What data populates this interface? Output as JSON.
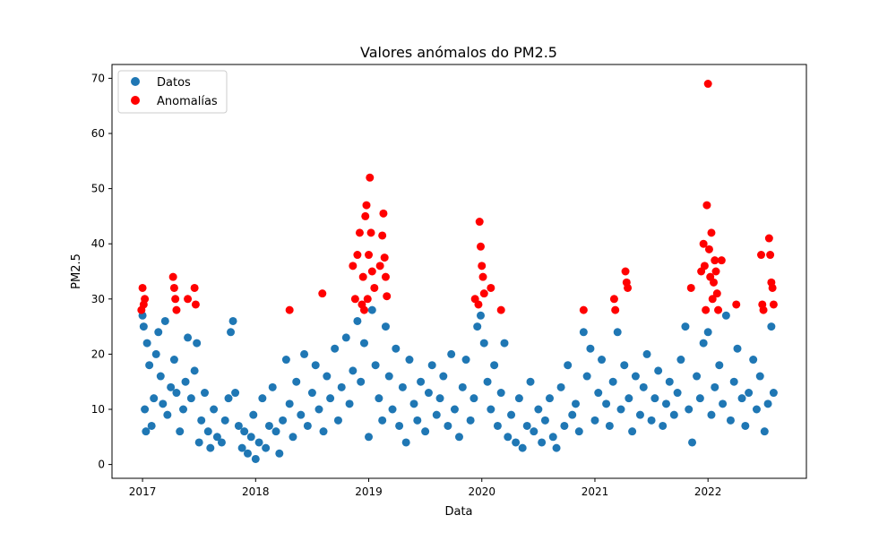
{
  "chart_data": {
    "type": "scatter",
    "title": "Valores anómalos do PM2.5",
    "xlabel": "Data",
    "ylabel": "PM2.5",
    "xlim": [
      2016.73,
      2022.87
    ],
    "ylim": [
      -2.5,
      72.5
    ],
    "x_ticks": [
      2017,
      2018,
      2019,
      2020,
      2021,
      2022
    ],
    "x_tick_labels": [
      "2017",
      "2018",
      "2019",
      "2020",
      "2021",
      "2022"
    ],
    "y_ticks": [
      0,
      10,
      20,
      30,
      40,
      50,
      60,
      70
    ],
    "y_tick_labels": [
      "0",
      "10",
      "20",
      "30",
      "40",
      "50",
      "60",
      "70"
    ],
    "grid": false,
    "legend": {
      "position": "top-left"
    },
    "series": [
      {
        "name": "Datos",
        "color": "#1f77b4",
        "points": [
          [
            2017.0,
            27
          ],
          [
            2017.01,
            25
          ],
          [
            2017.02,
            10
          ],
          [
            2017.03,
            6
          ],
          [
            2017.04,
            22
          ],
          [
            2017.06,
            18
          ],
          [
            2017.08,
            7
          ],
          [
            2017.1,
            12
          ],
          [
            2017.12,
            20
          ],
          [
            2017.14,
            24
          ],
          [
            2017.16,
            16
          ],
          [
            2017.18,
            11
          ],
          [
            2017.2,
            26
          ],
          [
            2017.22,
            9
          ],
          [
            2017.25,
            14
          ],
          [
            2017.28,
            19
          ],
          [
            2017.3,
            13
          ],
          [
            2017.33,
            6
          ],
          [
            2017.36,
            10
          ],
          [
            2017.38,
            15
          ],
          [
            2017.4,
            23
          ],
          [
            2017.43,
            12
          ],
          [
            2017.46,
            17
          ],
          [
            2017.48,
            22
          ],
          [
            2017.5,
            4
          ],
          [
            2017.52,
            8
          ],
          [
            2017.55,
            13
          ],
          [
            2017.58,
            6
          ],
          [
            2017.6,
            3
          ],
          [
            2017.63,
            10
          ],
          [
            2017.66,
            5
          ],
          [
            2017.7,
            4
          ],
          [
            2017.73,
            8
          ],
          [
            2017.76,
            12
          ],
          [
            2017.78,
            24
          ],
          [
            2017.8,
            26
          ],
          [
            2017.82,
            13
          ],
          [
            2017.85,
            7
          ],
          [
            2017.88,
            3
          ],
          [
            2017.9,
            6
          ],
          [
            2017.93,
            2
          ],
          [
            2017.96,
            5
          ],
          [
            2017.98,
            9
          ],
          [
            2018.0,
            1
          ],
          [
            2018.03,
            4
          ],
          [
            2018.06,
            12
          ],
          [
            2018.09,
            3
          ],
          [
            2018.12,
            7
          ],
          [
            2018.15,
            14
          ],
          [
            2018.18,
            6
          ],
          [
            2018.21,
            2
          ],
          [
            2018.24,
            8
          ],
          [
            2018.27,
            19
          ],
          [
            2018.3,
            11
          ],
          [
            2018.33,
            5
          ],
          [
            2018.36,
            15
          ],
          [
            2018.4,
            9
          ],
          [
            2018.43,
            20
          ],
          [
            2018.46,
            7
          ],
          [
            2018.5,
            13
          ],
          [
            2018.53,
            18
          ],
          [
            2018.56,
            10
          ],
          [
            2018.6,
            6
          ],
          [
            2018.63,
            16
          ],
          [
            2018.66,
            12
          ],
          [
            2018.7,
            21
          ],
          [
            2018.73,
            8
          ],
          [
            2018.76,
            14
          ],
          [
            2018.8,
            23
          ],
          [
            2018.83,
            11
          ],
          [
            2018.86,
            17
          ],
          [
            2018.9,
            26
          ],
          [
            2018.93,
            15
          ],
          [
            2018.96,
            22
          ],
          [
            2019.0,
            5
          ],
          [
            2019.03,
            28
          ],
          [
            2019.06,
            18
          ],
          [
            2019.09,
            12
          ],
          [
            2019.12,
            8
          ],
          [
            2019.15,
            25
          ],
          [
            2019.18,
            16
          ],
          [
            2019.21,
            10
          ],
          [
            2019.24,
            21
          ],
          [
            2019.27,
            7
          ],
          [
            2019.3,
            14
          ],
          [
            2019.33,
            4
          ],
          [
            2019.36,
            19
          ],
          [
            2019.4,
            11
          ],
          [
            2019.43,
            8
          ],
          [
            2019.46,
            15
          ],
          [
            2019.5,
            6
          ],
          [
            2019.53,
            13
          ],
          [
            2019.56,
            18
          ],
          [
            2019.6,
            9
          ],
          [
            2019.63,
            12
          ],
          [
            2019.66,
            16
          ],
          [
            2019.7,
            7
          ],
          [
            2019.73,
            20
          ],
          [
            2019.76,
            10
          ],
          [
            2019.8,
            5
          ],
          [
            2019.83,
            14
          ],
          [
            2019.86,
            19
          ],
          [
            2019.9,
            8
          ],
          [
            2019.93,
            12
          ],
          [
            2019.96,
            25
          ],
          [
            2019.99,
            27
          ],
          [
            2020.02,
            22
          ],
          [
            2020.05,
            15
          ],
          [
            2020.08,
            10
          ],
          [
            2020.11,
            18
          ],
          [
            2020.14,
            7
          ],
          [
            2020.17,
            13
          ],
          [
            2020.2,
            22
          ],
          [
            2020.23,
            5
          ],
          [
            2020.26,
            9
          ],
          [
            2020.3,
            4
          ],
          [
            2020.33,
            12
          ],
          [
            2020.36,
            3
          ],
          [
            2020.4,
            7
          ],
          [
            2020.43,
            15
          ],
          [
            2020.46,
            6
          ],
          [
            2020.5,
            10
          ],
          [
            2020.53,
            4
          ],
          [
            2020.56,
            8
          ],
          [
            2020.6,
            12
          ],
          [
            2020.63,
            5
          ],
          [
            2020.66,
            3
          ],
          [
            2020.7,
            14
          ],
          [
            2020.73,
            7
          ],
          [
            2020.76,
            18
          ],
          [
            2020.8,
            9
          ],
          [
            2020.83,
            11
          ],
          [
            2020.86,
            6
          ],
          [
            2020.9,
            24
          ],
          [
            2020.93,
            16
          ],
          [
            2020.96,
            21
          ],
          [
            2021.0,
            8
          ],
          [
            2021.03,
            13
          ],
          [
            2021.06,
            19
          ],
          [
            2021.1,
            11
          ],
          [
            2021.13,
            7
          ],
          [
            2021.16,
            15
          ],
          [
            2021.2,
            24
          ],
          [
            2021.23,
            10
          ],
          [
            2021.26,
            18
          ],
          [
            2021.3,
            12
          ],
          [
            2021.33,
            6
          ],
          [
            2021.36,
            16
          ],
          [
            2021.4,
            9
          ],
          [
            2021.43,
            14
          ],
          [
            2021.46,
            20
          ],
          [
            2021.5,
            8
          ],
          [
            2021.53,
            12
          ],
          [
            2021.56,
            17
          ],
          [
            2021.6,
            7
          ],
          [
            2021.63,
            11
          ],
          [
            2021.66,
            15
          ],
          [
            2021.7,
            9
          ],
          [
            2021.73,
            13
          ],
          [
            2021.76,
            19
          ],
          [
            2021.8,
            25
          ],
          [
            2021.83,
            10
          ],
          [
            2021.86,
            4
          ],
          [
            2021.9,
            16
          ],
          [
            2021.93,
            12
          ],
          [
            2021.96,
            22
          ],
          [
            2022.0,
            24
          ],
          [
            2022.03,
            9
          ],
          [
            2022.06,
            14
          ],
          [
            2022.1,
            18
          ],
          [
            2022.13,
            11
          ],
          [
            2022.16,
            27
          ],
          [
            2022.2,
            8
          ],
          [
            2022.23,
            15
          ],
          [
            2022.26,
            21
          ],
          [
            2022.3,
            12
          ],
          [
            2022.33,
            7
          ],
          [
            2022.36,
            13
          ],
          [
            2022.4,
            19
          ],
          [
            2022.43,
            10
          ],
          [
            2022.46,
            16
          ],
          [
            2022.5,
            6
          ],
          [
            2022.53,
            11
          ],
          [
            2022.56,
            25
          ],
          [
            2022.58,
            13
          ]
        ]
      },
      {
        "name": "Anomalías",
        "color": "#ff0000",
        "points": [
          [
            2017.0,
            32
          ],
          [
            2017.01,
            29
          ],
          [
            2017.02,
            30
          ],
          [
            2016.99,
            28
          ],
          [
            2017.27,
            34
          ],
          [
            2017.28,
            32
          ],
          [
            2017.29,
            30
          ],
          [
            2017.3,
            28
          ],
          [
            2017.4,
            30
          ],
          [
            2017.46,
            32
          ],
          [
            2017.47,
            29
          ],
          [
            2018.3,
            28
          ],
          [
            2018.59,
            31
          ],
          [
            2018.86,
            36
          ],
          [
            2018.88,
            30
          ],
          [
            2018.9,
            38
          ],
          [
            2018.92,
            42
          ],
          [
            2018.95,
            34
          ],
          [
            2018.97,
            45
          ],
          [
            2018.98,
            47
          ],
          [
            2019.0,
            38
          ],
          [
            2019.01,
            52
          ],
          [
            2019.02,
            42
          ],
          [
            2019.03,
            35
          ],
          [
            2018.99,
            30
          ],
          [
            2018.96,
            28
          ],
          [
            2019.05,
            32
          ],
          [
            2019.1,
            36
          ],
          [
            2019.12,
            41.5
          ],
          [
            2019.13,
            45.5
          ],
          [
            2019.14,
            37.5
          ],
          [
            2019.15,
            34
          ],
          [
            2019.16,
            30.5
          ],
          [
            2018.94,
            29
          ],
          [
            2019.98,
            44
          ],
          [
            2019.99,
            39.5
          ],
          [
            2020.0,
            36
          ],
          [
            2020.01,
            34
          ],
          [
            2020.02,
            31
          ],
          [
            2019.97,
            29
          ],
          [
            2019.94,
            30
          ],
          [
            2020.08,
            32
          ],
          [
            2020.17,
            28
          ],
          [
            2020.9,
            28
          ],
          [
            2021.17,
            30
          ],
          [
            2021.18,
            28
          ],
          [
            2021.27,
            35
          ],
          [
            2021.28,
            33
          ],
          [
            2021.29,
            32
          ],
          [
            2021.85,
            32
          ],
          [
            2021.94,
            35
          ],
          [
            2021.96,
            40
          ],
          [
            2021.97,
            36
          ],
          [
            2021.99,
            47
          ],
          [
            2022.0,
            69
          ],
          [
            2022.01,
            39
          ],
          [
            2022.02,
            34
          ],
          [
            2022.03,
            42
          ],
          [
            2022.04,
            30
          ],
          [
            2022.05,
            33
          ],
          [
            2022.06,
            37
          ],
          [
            2022.07,
            35
          ],
          [
            2022.08,
            31
          ],
          [
            2022.09,
            28
          ],
          [
            2022.12,
            37
          ],
          [
            2022.25,
            29
          ],
          [
            2021.98,
            28
          ],
          [
            2022.47,
            38
          ],
          [
            2022.48,
            29
          ],
          [
            2022.49,
            28
          ],
          [
            2022.54,
            41
          ],
          [
            2022.55,
            38
          ],
          [
            2022.56,
            33
          ],
          [
            2022.57,
            32
          ],
          [
            2022.58,
            29
          ]
        ]
      }
    ]
  }
}
